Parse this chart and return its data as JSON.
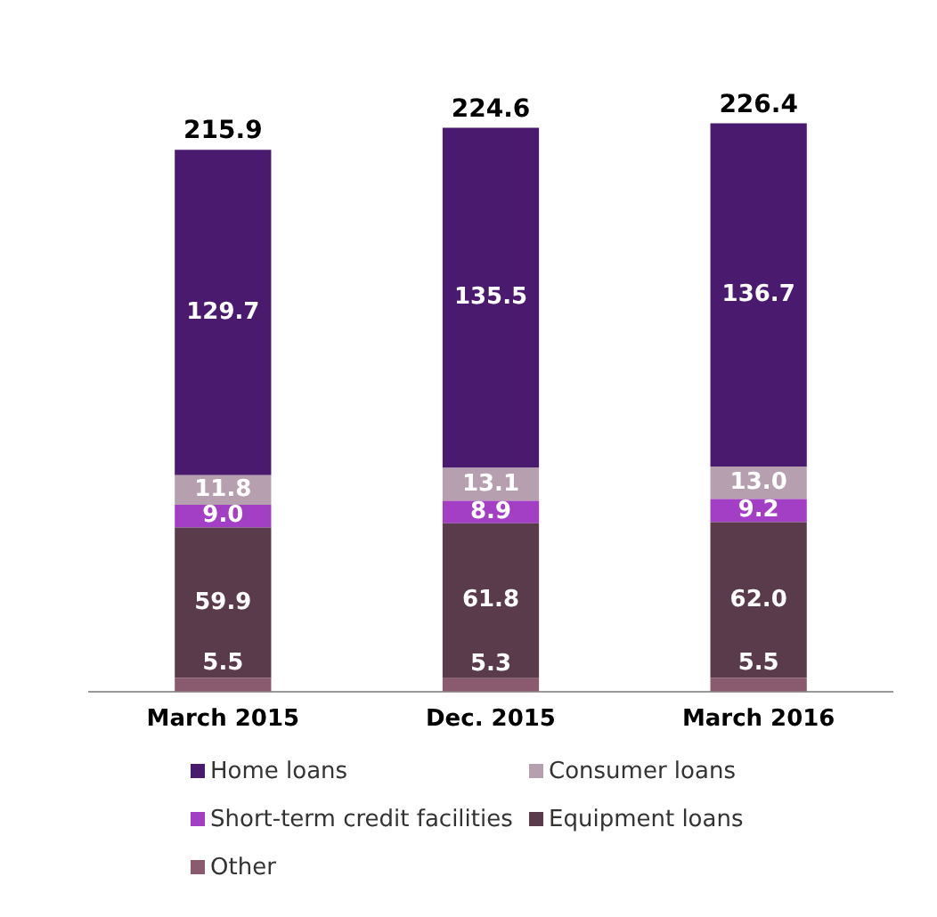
{
  "chart_data": {
    "type": "bar",
    "stacked": true,
    "categories": [
      "March 2015",
      "Dec. 2015",
      "March 2016"
    ],
    "series": [
      {
        "name": "Other",
        "color": "#8a5a6e",
        "values": [
          5.5,
          5.3,
          5.5
        ],
        "value_labels": [
          "5.5",
          "5.3",
          "5.5"
        ]
      },
      {
        "name": "Equipment loans",
        "color": "#5a3b4b",
        "values": [
          59.9,
          61.8,
          62.0
        ],
        "value_labels": [
          "59.9",
          "61.8",
          "62.0"
        ]
      },
      {
        "name": "Short-term credit facilities",
        "color": "#a33fc4",
        "values": [
          9.0,
          8.9,
          9.2
        ],
        "value_labels": [
          "9.0",
          "8.9",
          "9.2"
        ]
      },
      {
        "name": "Consumer loans",
        "color": "#b6a0b0",
        "values": [
          11.8,
          13.1,
          13.0
        ],
        "value_labels": [
          "11.8",
          "13.1",
          "13.0"
        ]
      },
      {
        "name": "Home loans",
        "color": "#4a1a6e",
        "values": [
          129.7,
          135.5,
          136.7
        ],
        "value_labels": [
          "129.7",
          "135.5",
          "136.7"
        ]
      }
    ],
    "totals": [
      "215.9",
      "224.6",
      "226.4"
    ],
    "tick_labels": "x",
    "grid": false,
    "legend": "bottom"
  }
}
